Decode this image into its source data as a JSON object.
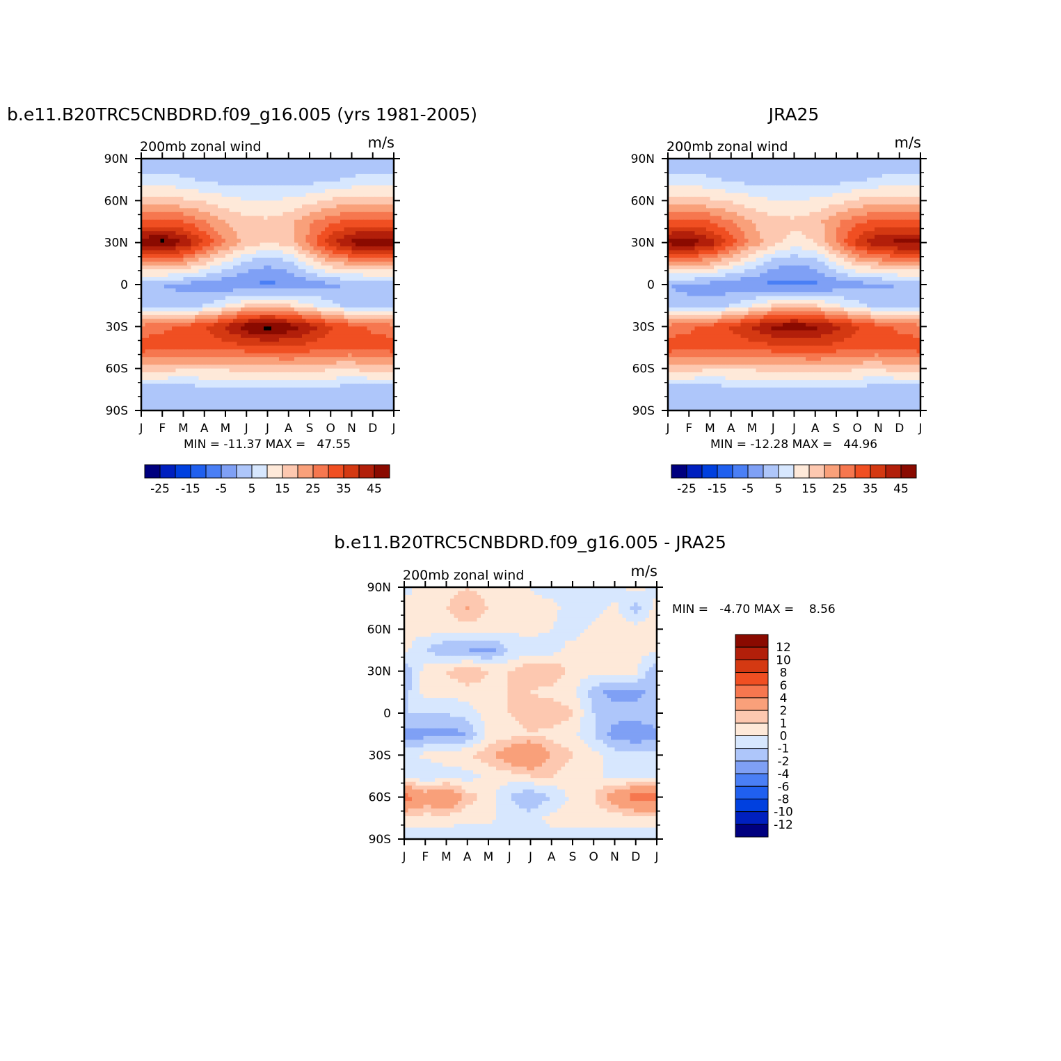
{
  "figure": {
    "panels": [
      {
        "id": "model",
        "title": "b.e11.B20TRC5CNBDRD.f09_g16.005 (yrs 1981-2005)",
        "subtitle_left": "200mb zonal wind",
        "subtitle_right": "m/s",
        "stats": "MIN = -11.37 MAX =   47.55"
      },
      {
        "id": "obs",
        "title": "JRA25",
        "subtitle_left": "200mb zonal wind",
        "subtitle_right": "m/s",
        "stats": "MIN = -12.28 MAX =   44.96"
      },
      {
        "id": "diff",
        "title": "b.e11.B20TRC5CNBDRD.f09_g16.005 - JRA25",
        "subtitle_left": "200mb zonal wind",
        "subtitle_right": "m/s",
        "stats": "MIN =   -4.70 MAX =    8.56"
      }
    ]
  },
  "chart_data": [
    {
      "type": "heatmap",
      "panel": "model",
      "title": "b.e11.B20TRC5CNBDRD.f09_g16.005 (yrs 1981-2005)",
      "variable": "200mb zonal wind",
      "units": "m/s",
      "x_ticks": [
        "J",
        "F",
        "M",
        "A",
        "M",
        "J",
        "J",
        "A",
        "S",
        "O",
        "N",
        "D",
        "J"
      ],
      "y_ticks": [
        "90N",
        "60N",
        "30N",
        "0",
        "30S",
        "60S",
        "90S"
      ],
      "y": [
        90,
        75,
        60,
        45,
        30,
        15,
        0,
        -15,
        -30,
        -45,
        -60,
        -75,
        -90
      ],
      "values": [
        [
          -5,
          -5,
          -5,
          -5,
          -5,
          -5,
          -5,
          -5,
          -5,
          -5,
          -5,
          -5,
          -5
        ],
        [
          2,
          2,
          1,
          -1,
          -2,
          -2,
          -2,
          -2,
          -2,
          -1,
          1,
          2,
          2
        ],
        [
          12,
          12,
          11,
          9,
          7,
          5,
          5,
          6,
          8,
          11,
          12,
          12,
          12
        ],
        [
          26,
          26,
          25,
          20,
          15,
          12,
          11,
          13,
          19,
          24,
          26,
          26,
          26
        ],
        [
          44,
          47,
          40,
          30,
          20,
          13,
          10,
          12,
          22,
          34,
          42,
          44,
          44
        ],
        [
          18,
          18,
          16,
          10,
          4,
          -2,
          -4,
          -2,
          6,
          13,
          16,
          18,
          18
        ],
        [
          -5,
          -5,
          -6,
          -8,
          -9,
          -10,
          -11,
          -10,
          -8,
          -6,
          -5,
          -5,
          -5
        ],
        [
          -4,
          -4,
          -3,
          0,
          5,
          10,
          12,
          10,
          6,
          2,
          -2,
          -3,
          -4
        ],
        [
          22,
          24,
          26,
          30,
          36,
          44,
          47,
          44,
          38,
          31,
          27,
          24,
          22
        ],
        [
          28,
          27,
          26,
          26,
          27,
          28,
          29,
          29,
          28,
          26,
          25,
          27,
          28
        ],
        [
          12,
          12,
          11,
          11,
          11,
          12,
          12,
          13,
          12,
          11,
          11,
          12,
          12
        ],
        [
          -3,
          -3,
          -3,
          -2,
          -2,
          -2,
          -2,
          -2,
          -2,
          -2,
          -3,
          -3,
          -3
        ],
        [
          -5,
          -5,
          -5,
          -5,
          -5,
          -5,
          -5,
          -5,
          -5,
          -5,
          -5,
          -5,
          -5
        ]
      ],
      "colorbar_labels": [
        "-25",
        "-15",
        "-5",
        "5",
        "15",
        "25",
        "35",
        "45"
      ],
      "stats": {
        "min": -11.37,
        "max": 47.55
      }
    },
    {
      "type": "heatmap",
      "panel": "obs",
      "title": "JRA25",
      "variable": "200mb zonal wind",
      "units": "m/s",
      "x_ticks": [
        "J",
        "F",
        "M",
        "A",
        "M",
        "J",
        "J",
        "A",
        "S",
        "O",
        "N",
        "D",
        "J"
      ],
      "y_ticks": [
        "90N",
        "60N",
        "30N",
        "0",
        "30S",
        "60S",
        "90S"
      ],
      "y": [
        90,
        75,
        60,
        45,
        30,
        15,
        0,
        -15,
        -30,
        -45,
        -60,
        -75,
        -90
      ],
      "values": [
        [
          -5,
          -5,
          -5,
          -5,
          -5,
          -5,
          -5,
          -5,
          -5,
          -5,
          -5,
          -5,
          -5
        ],
        [
          2,
          2,
          1,
          -1,
          -2,
          -2,
          -2,
          -2,
          -2,
          -1,
          1,
          2,
          2
        ],
        [
          12,
          12,
          11,
          9,
          7,
          5,
          5,
          6,
          8,
          11,
          12,
          12,
          12
        ],
        [
          26,
          26,
          25,
          20,
          15,
          12,
          11,
          13,
          19,
          24,
          26,
          26,
          26
        ],
        [
          42,
          44,
          38,
          28,
          18,
          12,
          8,
          10,
          20,
          32,
          40,
          42,
          42
        ],
        [
          17,
          17,
          15,
          9,
          3,
          -3,
          -5,
          -3,
          5,
          12,
          15,
          17,
          17
        ],
        [
          -5,
          -6,
          -7,
          -9,
          -10,
          -11,
          -12,
          -11,
          -9,
          -7,
          -6,
          -5,
          -5
        ],
        [
          -4,
          -4,
          -3,
          0,
          5,
          10,
          12,
          10,
          6,
          2,
          -2,
          -3,
          -4
        ],
        [
          22,
          24,
          27,
          31,
          36,
          42,
          44,
          42,
          37,
          31,
          27,
          24,
          22
        ],
        [
          28,
          27,
          26,
          26,
          27,
          28,
          29,
          29,
          28,
          26,
          25,
          27,
          28
        ],
        [
          12,
          12,
          11,
          11,
          11,
          12,
          12,
          13,
          12,
          11,
          11,
          12,
          12
        ],
        [
          -3,
          -3,
          -3,
          -2,
          -2,
          -2,
          -2,
          -2,
          -2,
          -2,
          -3,
          -3,
          -3
        ],
        [
          -5,
          -5,
          -5,
          -5,
          -5,
          -5,
          -5,
          -5,
          -5,
          -5,
          -5,
          -5,
          -5
        ]
      ],
      "colorbar_labels": [
        "-25",
        "-15",
        "-5",
        "5",
        "15",
        "25",
        "35",
        "45"
      ],
      "stats": {
        "min": -12.28,
        "max": 44.96
      }
    },
    {
      "type": "heatmap",
      "panel": "diff",
      "title": "b.e11.B20TRC5CNBDRD.f09_g16.005 - JRA25",
      "variable": "200mb zonal wind",
      "units": "m/s",
      "x_ticks": [
        "J",
        "F",
        "M",
        "A",
        "M",
        "J",
        "J",
        "A",
        "S",
        "O",
        "N",
        "D",
        "J"
      ],
      "y_ticks": [
        "90N",
        "60N",
        "30N",
        "0",
        "30S",
        "60S",
        "90S"
      ],
      "y": [
        90,
        75,
        60,
        45,
        30,
        15,
        0,
        -15,
        -30,
        -45,
        -60,
        -75,
        -90
      ],
      "values": [
        [
          -0.5,
          0.5,
          0.5,
          1,
          0.5,
          0.3,
          0,
          -0.5,
          -1,
          -1,
          -0.5,
          0.5,
          -0.5
        ],
        [
          0.5,
          0.5,
          1,
          2,
          1,
          0.5,
          0.3,
          0.3,
          -0.5,
          -0.5,
          0.3,
          -1.5,
          0.5
        ],
        [
          0.3,
          0.5,
          0.5,
          0.5,
          0.5,
          0.3,
          0.3,
          0,
          -0.5,
          0.3,
          0.5,
          0.5,
          0.3
        ],
        [
          0.3,
          -1,
          -2,
          -2,
          -2.5,
          -1,
          -0.5,
          -0.5,
          0.5,
          0.5,
          0.5,
          0.3,
          0.3
        ],
        [
          -2,
          0.5,
          1,
          2,
          1,
          1,
          2,
          2,
          0.5,
          0.3,
          0.3,
          0.3,
          -2
        ],
        [
          -1.5,
          0.5,
          0.3,
          0.5,
          0.5,
          1,
          1,
          0.5,
          0.3,
          -1.5,
          -2.5,
          -2.5,
          -1.5
        ],
        [
          -1,
          -1,
          -1,
          -0.5,
          0.5,
          1,
          1.5,
          2,
          1,
          -1,
          -1.5,
          -1.5,
          -1
        ],
        [
          -2.5,
          -2.5,
          -2.5,
          -2,
          0.3,
          0.5,
          1,
          0.5,
          0.3,
          -1,
          -2.5,
          -3,
          -2.5
        ],
        [
          -0.5,
          0.3,
          0.5,
          1,
          1.5,
          3,
          4,
          2,
          1,
          0.3,
          -0.5,
          -0.5,
          -0.5
        ],
        [
          -0.5,
          -1,
          -0.5,
          -0.5,
          0.3,
          0.5,
          1,
          1,
          0.5,
          0.3,
          -0.5,
          -1,
          -0.5
        ],
        [
          5,
          3,
          4,
          1.5,
          0.5,
          -1,
          -2,
          -1,
          0.3,
          1,
          3,
          5,
          5
        ],
        [
          0.5,
          0.5,
          0.5,
          0.3,
          0.3,
          -0.5,
          -0.5,
          0.3,
          0.5,
          0.3,
          0.3,
          0.5,
          0.5
        ],
        [
          -0.5,
          -0.5,
          -0.5,
          -1,
          -1,
          -1,
          -0.5,
          -0.5,
          -0.5,
          -0.5,
          -0.5,
          -0.5,
          -0.5
        ]
      ],
      "colorbar_labels": [
        "12",
        "10",
        "8",
        "6",
        "4",
        "2",
        "1",
        "0",
        "-1",
        "-2",
        "-4",
        "-6",
        "-8",
        "-10",
        "-12"
      ],
      "stats": {
        "min": -4.7,
        "max": 8.56
      }
    }
  ],
  "colors": {
    "full_field": [
      "#00007f",
      "#0020bf",
      "#0040df",
      "#2060ef",
      "#4a7ff5",
      "#7fa0f5",
      "#aec6fa",
      "#d7e7fe",
      "#fee9d9",
      "#fdc8b0",
      "#f9a07a",
      "#f6774f",
      "#f04f22",
      "#d43912",
      "#b21f0a",
      "#8a0a00"
    ],
    "diff_field": [
      "#00007f",
      "#0020bf",
      "#0040df",
      "#2060ef",
      "#4a7ff5",
      "#7fa0f5",
      "#aec6fa",
      "#d7e7fe",
      "#fee9d9",
      "#fdc8b0",
      "#f9a07a",
      "#f6774f",
      "#f04f22",
      "#d43912",
      "#b21f0a",
      "#8a0a00"
    ]
  }
}
